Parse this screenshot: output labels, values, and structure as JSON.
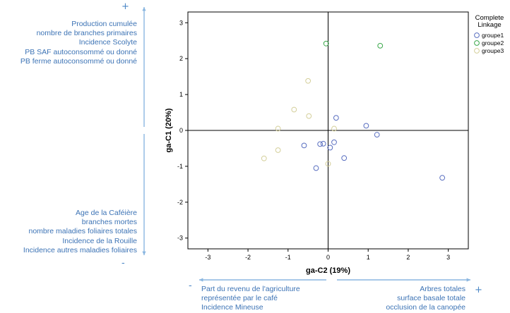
{
  "colors": {
    "annotation_text": "#3c73b5",
    "arrow": "#8ab6e0",
    "groupe1": "#5a6fc0",
    "groupe2": "#3aa84a",
    "groupe3": "#d4cf9a"
  },
  "left_annotations": {
    "plus_sign": "+",
    "minus_sign": "-",
    "top_lines": [
      "Production cumulée",
      "nombre de branches primaires",
      "Incidence Scolyte",
      "PB SAF autoconsommé ou donné",
      "PB ferme autoconsommé ou donné"
    ],
    "bottom_lines": [
      "Age de la Caféière",
      "branches mortes",
      "nombre maladies foliaires totales",
      "Incidence de la Rouille",
      "Incidence autres maladies foliaires"
    ]
  },
  "bottom_annotations": {
    "minus_sign": "-",
    "plus_sign": "+",
    "left_lines": [
      "Part du revenu de l'agriculture",
      "représentée par le café",
      "Incidence Mineuse"
    ],
    "right_lines": [
      "Arbres totales",
      "surface basale totale",
      "occlusion de la canopée"
    ]
  },
  "chart_data": {
    "type": "scatter",
    "xlabel": "ga-C2 (19%)",
    "ylabel": "ga-C1 (20%)",
    "xlim": [
      -3.5,
      3.5
    ],
    "ylim": [
      -3.3,
      3.3
    ],
    "xticks": [
      -3,
      -2,
      -1,
      0,
      1,
      2,
      3
    ],
    "yticks": [
      3,
      2,
      1,
      0,
      -1,
      -2,
      -3
    ],
    "grid": false,
    "reference_lines": {
      "x": 0,
      "y": 0
    },
    "legend": {
      "title_lines": [
        "Complete",
        "Linkage"
      ],
      "placement": "top-right-outside"
    },
    "series": [
      {
        "name": "groupe1",
        "color": "#5a6fc0",
        "points": [
          {
            "x": 2.85,
            "y": -1.32
          },
          {
            "x": 1.22,
            "y": -0.12
          },
          {
            "x": 0.95,
            "y": 0.13
          },
          {
            "x": 0.2,
            "y": 0.35
          },
          {
            "x": 0.15,
            "y": -0.33
          },
          {
            "x": 0.4,
            "y": -0.77
          },
          {
            "x": 0.05,
            "y": -0.48
          },
          {
            "x": -0.12,
            "y": -0.37
          },
          {
            "x": -0.2,
            "y": -0.38
          },
          {
            "x": -0.6,
            "y": -0.42
          },
          {
            "x": -0.3,
            "y": -1.05
          }
        ]
      },
      {
        "name": "groupe2",
        "color": "#3aa84a",
        "points": [
          {
            "x": -0.05,
            "y": 2.42
          },
          {
            "x": 1.3,
            "y": 2.36
          }
        ]
      },
      {
        "name": "groupe3",
        "color": "#d4cf9a",
        "points": [
          {
            "x": -0.5,
            "y": 1.38
          },
          {
            "x": -0.85,
            "y": 0.58
          },
          {
            "x": -0.48,
            "y": 0.4
          },
          {
            "x": -1.25,
            "y": 0.05
          },
          {
            "x": 0.15,
            "y": 0.05
          },
          {
            "x": -1.25,
            "y": -0.55
          },
          {
            "x": -1.6,
            "y": -0.78
          },
          {
            "x": 0.0,
            "y": -0.93
          }
        ]
      }
    ]
  }
}
